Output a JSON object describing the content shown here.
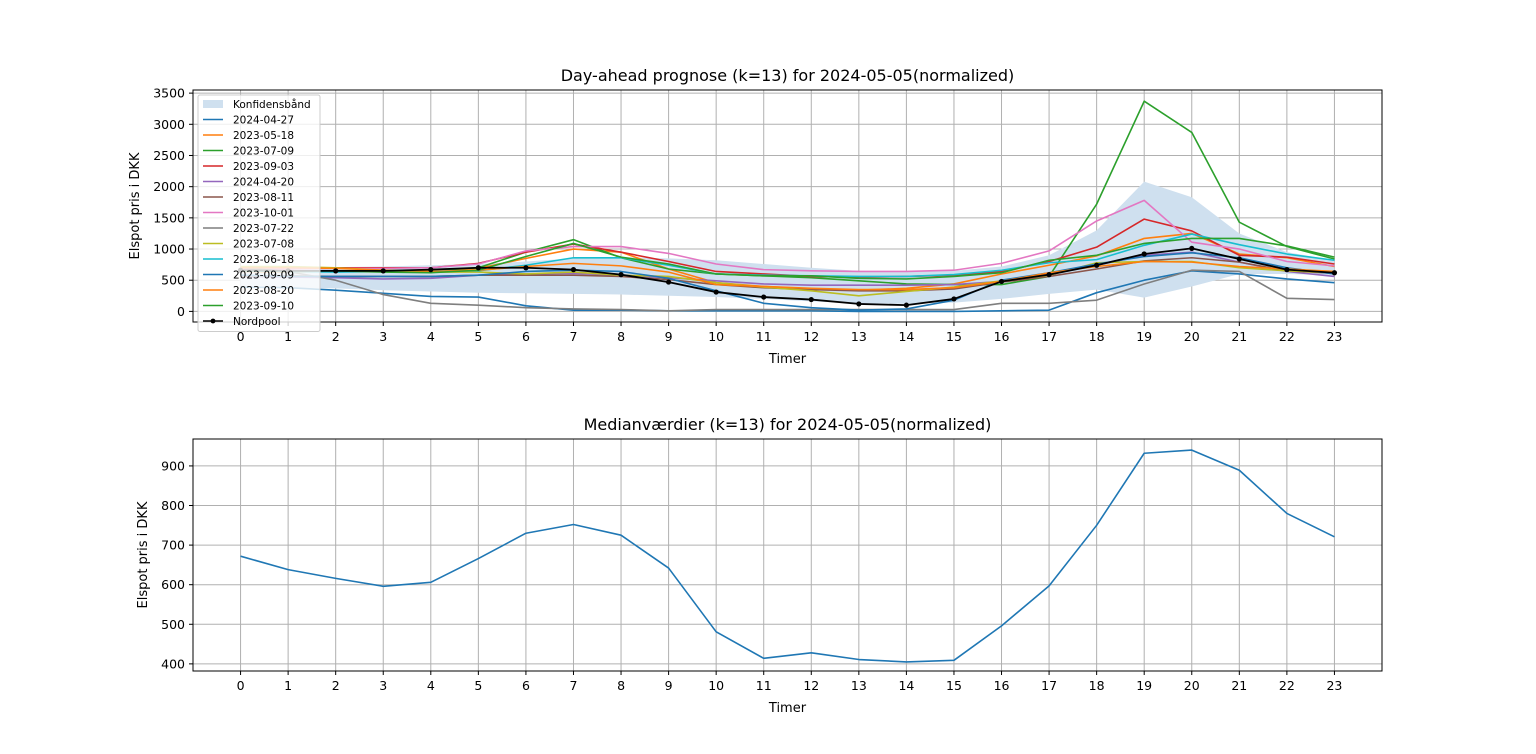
{
  "chart_data": [
    {
      "type": "line",
      "title": "Day-ahead prognose (k=13) for 2024-05-05(normalized)",
      "xlabel": "Timer",
      "ylabel": "Elspot pris i DKK",
      "xlim": [
        -1,
        24
      ],
      "ylim": [
        -170,
        3550
      ],
      "x": [
        0,
        1,
        2,
        3,
        4,
        5,
        6,
        7,
        8,
        9,
        10,
        11,
        12,
        13,
        14,
        15,
        16,
        17,
        18,
        19,
        20,
        21,
        22,
        23
      ],
      "x_ticks": [
        "0",
        "1",
        "2",
        "3",
        "4",
        "5",
        "6",
        "7",
        "8",
        "9",
        "10",
        "11",
        "12",
        "13",
        "14",
        "15",
        "16",
        "17",
        "18",
        "19",
        "20",
        "21",
        "22",
        "23"
      ],
      "y_ticks": [
        0,
        500,
        1000,
        1500,
        2000,
        2500,
        3000,
        3500
      ],
      "grid": true,
      "legend_position": "upper-left",
      "band": {
        "name": "Konfidensbånd",
        "color": "#cfe0ef",
        "lower": [
          400,
          380,
          370,
          340,
          320,
          300,
          290,
          280,
          270,
          250,
          230,
          200,
          160,
          130,
          120,
          140,
          200,
          280,
          350,
          220,
          400,
          600,
          600,
          580
        ],
        "upper": [
          700,
          700,
          710,
          720,
          740,
          760,
          800,
          850,
          870,
          850,
          820,
          760,
          700,
          650,
          640,
          650,
          720,
          900,
          1300,
          2080,
          1830,
          1250,
          950,
          820
        ]
      },
      "series": [
        {
          "name": "2024-04-27",
          "color": "#1f77b4",
          "values": [
            390,
            380,
            340,
            290,
            240,
            230,
            90,
            20,
            20,
            10,
            10,
            10,
            10,
            0,
            0,
            0,
            10,
            20,
            300,
            500,
            650,
            600,
            520,
            460
          ]
        },
        {
          "name": "2023-05-18",
          "color": "#ff7f0e",
          "values": [
            640,
            630,
            640,
            640,
            640,
            690,
            850,
            1000,
            950,
            680,
            460,
            400,
            360,
            340,
            370,
            440,
            600,
            740,
            890,
            1170,
            1250,
            920,
            860,
            720
          ]
        },
        {
          "name": "2023-07-09",
          "color": "#2ca02c",
          "values": [
            650,
            640,
            650,
            650,
            650,
            700,
            950,
            1150,
            860,
            680,
            600,
            570,
            540,
            490,
            440,
            430,
            430,
            560,
            1720,
            3370,
            2870,
            1430,
            1040,
            840
          ]
        },
        {
          "name": "2023-09-03",
          "color": "#d62728",
          "values": [
            680,
            680,
            700,
            700,
            700,
            770,
            950,
            1080,
            950,
            800,
            640,
            600,
            560,
            550,
            560,
            580,
            640,
            800,
            1030,
            1480,
            1290,
            900,
            870,
            760
          ]
        },
        {
          "name": "2024-04-20",
          "color": "#9467bd",
          "values": [
            560,
            550,
            540,
            520,
            530,
            580,
            600,
            610,
            580,
            540,
            490,
            440,
            420,
            420,
            420,
            430,
            480,
            600,
            740,
            900,
            950,
            790,
            640,
            560
          ]
        },
        {
          "name": "2023-08-11",
          "color": "#8c564b",
          "values": [
            560,
            570,
            560,
            560,
            560,
            580,
            580,
            580,
            560,
            510,
            430,
            380,
            350,
            330,
            330,
            360,
            470,
            560,
            680,
            810,
            860,
            790,
            650,
            610
          ]
        },
        {
          "name": "2023-10-01",
          "color": "#e377c2",
          "values": [
            680,
            680,
            690,
            690,
            700,
            760,
            970,
            1040,
            1040,
            930,
            760,
            670,
            650,
            640,
            640,
            660,
            770,
            970,
            1450,
            1780,
            1110,
            1000,
            800,
            730
          ]
        },
        {
          "name": "2023-07-22",
          "color": "#7f7f7f",
          "values": [
            700,
            640,
            500,
            270,
            130,
            100,
            60,
            40,
            30,
            10,
            30,
            30,
            30,
            30,
            30,
            30,
            130,
            130,
            180,
            440,
            660,
            640,
            210,
            190
          ]
        },
        {
          "name": "2023-07-08",
          "color": "#bcbd22",
          "values": [
            720,
            720,
            700,
            660,
            630,
            630,
            600,
            630,
            580,
            560,
            460,
            390,
            330,
            250,
            320,
            390,
            490,
            580,
            780,
            800,
            800,
            700,
            650,
            620
          ]
        },
        {
          "name": "2023-06-18",
          "color": "#17becf",
          "values": [
            650,
            640,
            630,
            640,
            650,
            650,
            740,
            860,
            860,
            740,
            600,
            580,
            570,
            560,
            560,
            590,
            660,
            780,
            830,
            1060,
            1240,
            1070,
            920,
            820
          ]
        },
        {
          "name": "2023-09-09",
          "color": "#1f77b4",
          "values": [
            580,
            560,
            560,
            560,
            560,
            580,
            640,
            660,
            640,
            530,
            330,
            130,
            60,
            20,
            40,
            180,
            500,
            620,
            760,
            880,
            940,
            860,
            700,
            600
          ]
        },
        {
          "name": "2023-08-20",
          "color": "#ff7f0e",
          "values": [
            700,
            700,
            690,
            660,
            640,
            660,
            720,
            770,
            730,
            630,
            430,
            400,
            370,
            350,
            350,
            380,
            480,
            620,
            720,
            800,
            790,
            720,
            680,
            640
          ]
        },
        {
          "name": "2023-09-10",
          "color": "#2ca02c",
          "values": [
            650,
            650,
            650,
            630,
            620,
            660,
            880,
            1090,
            870,
            760,
            600,
            570,
            570,
            530,
            520,
            560,
            620,
            820,
            900,
            1090,
            1170,
            1170,
            1050,
            870
          ]
        },
        {
          "name": "Nordpool",
          "color": "#000000",
          "marker": true,
          "values": [
            660,
            650,
            650,
            650,
            670,
            700,
            700,
            670,
            590,
            470,
            310,
            230,
            190,
            120,
            100,
            200,
            480,
            590,
            740,
            920,
            1010,
            840,
            670,
            620
          ]
        }
      ]
    },
    {
      "type": "line",
      "title": "Medianværdier (k=13) for 2024-05-05(normalized)",
      "xlabel": "Timer",
      "ylabel": "Elspot pris i DKK",
      "xlim": [
        -1,
        24
      ],
      "ylim": [
        382,
        968
      ],
      "x": [
        0,
        1,
        2,
        3,
        4,
        5,
        6,
        7,
        8,
        9,
        10,
        11,
        12,
        13,
        14,
        15,
        16,
        17,
        18,
        19,
        20,
        21,
        22,
        23
      ],
      "x_ticks": [
        "0",
        "1",
        "2",
        "3",
        "4",
        "5",
        "6",
        "7",
        "8",
        "9",
        "10",
        "11",
        "12",
        "13",
        "14",
        "15",
        "16",
        "17",
        "18",
        "19",
        "20",
        "21",
        "22",
        "23"
      ],
      "y_ticks": [
        400,
        500,
        600,
        700,
        800,
        900
      ],
      "grid": true,
      "series": [
        {
          "color": "#1f77b4",
          "values": [
            672,
            638,
            616,
            596,
            606,
            666,
            730,
            752,
            725,
            642,
            481,
            414,
            428,
            411,
            405,
            409,
            496,
            597,
            750,
            932,
            940,
            889,
            780,
            721
          ]
        }
      ]
    }
  ]
}
